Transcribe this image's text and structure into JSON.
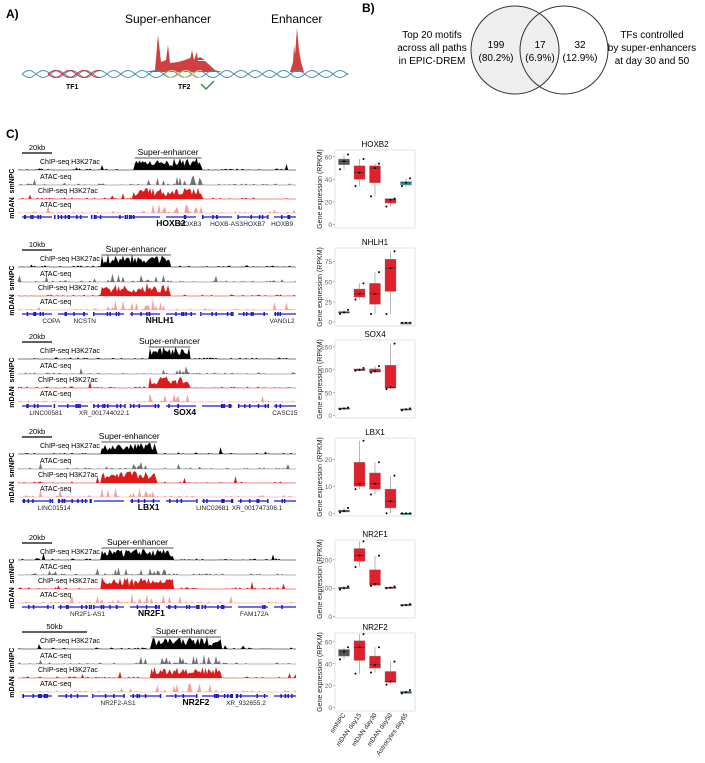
{
  "panels": {
    "a": "A)",
    "b": "B)",
    "c": "C)"
  },
  "panel_a": {
    "super_enhancer": "Super-enhancer",
    "enhancer": "Enhancer",
    "tf1": "TF1",
    "tf2": "TF2",
    "check_icon": "checkmark-icon",
    "colors": {
      "peak": "#d04040",
      "dna": "#4a90b0",
      "tf1": "#e03030",
      "tf2": "#f0d070",
      "check": "#3a8a4a"
    }
  },
  "panel_b": {
    "left_label": [
      "Top 20 motifs",
      "across all paths",
      "in EPIC-DREM"
    ],
    "right_label": [
      "TFs controlled",
      "by super-enhancers",
      "at day 30 and 50"
    ],
    "left_only": {
      "count": "199",
      "pct": "(80.2%)"
    },
    "overlap": {
      "count": "17",
      "pct": "(6.9%)"
    },
    "right_only": {
      "count": "32",
      "pct": "(12.9%)"
    },
    "colors": {
      "left_fill": "#efefef"
    }
  },
  "panel_c": {
    "super_enhancer": "Super-enhancer",
    "cell_labels": [
      "smNPC",
      "mDAN"
    ],
    "track_labels": [
      "ChIP-seq H3K27ac",
      "ATAC-seq",
      "ChIP-seq H3K27ac",
      "ATAC-seq"
    ],
    "track_colors": [
      "#000000",
      "#707070",
      "#e01818",
      "#f4a0a0"
    ],
    "gene_color": "#1a1ad0",
    "loci": [
      {
        "scale": "20kb",
        "focus": "HOXB2",
        "genes": [
          "HOXB3",
          "HOXB-AS3",
          "HOXB7",
          "HOXB9"
        ]
      },
      {
        "scale": "10kb",
        "focus": "NHLH1",
        "genes": [
          "COPA",
          "NCSTN",
          "VANGL2"
        ]
      },
      {
        "scale": "20kb",
        "focus": "SOX4",
        "genes": [
          "LINC00581",
          "XR_001744022.1",
          "CASC15"
        ]
      },
      {
        "scale": "20kb",
        "focus": "LBX1",
        "genes": [
          "LINC01514",
          "LINC02681",
          "XR_001747306.1"
        ]
      },
      {
        "scale": "20kb",
        "focus": "NR2F1",
        "genes": [
          "NR2F1-AS1",
          "FAM172A"
        ]
      },
      {
        "scale": "50kb",
        "focus": "NR2F2",
        "genes": [
          "NR2F2-AS1",
          "XR_932655.2"
        ]
      }
    ]
  },
  "chart_data": {
    "type": "box",
    "ylabel": "Gene expression (RPKM)",
    "categories": [
      "smNPC",
      "mDAN day15",
      "mDAN day30",
      "mDAN day50",
      "Astrocytes day65"
    ],
    "category_colors": [
      "#555555",
      "#e0202a",
      "#e0202a",
      "#e0202a",
      "#20a0a0"
    ],
    "panels": [
      {
        "title": "HOXB2",
        "yticks": [
          0,
          20,
          40,
          60
        ],
        "ylim": [
          -3,
          66
        ],
        "boxes": [
          [
            49,
            53,
            56,
            58,
            62
          ],
          [
            34,
            40,
            46,
            52,
            58
          ],
          [
            25,
            37,
            50,
            52,
            54
          ],
          [
            16,
            19,
            22,
            23,
            23
          ],
          [
            34,
            35,
            37,
            38,
            41
          ]
        ]
      },
      {
        "title": "NHLH1",
        "yticks": [
          0,
          25,
          50,
          75
        ],
        "ylim": [
          -5,
          92
        ],
        "boxes": [
          [
            10,
            11,
            12,
            13,
            15
          ],
          [
            28,
            31,
            35,
            41,
            48
          ],
          [
            10,
            22,
            35,
            48,
            62
          ],
          [
            10,
            38,
            67,
            78,
            88
          ],
          [
            -1,
            -1,
            -1,
            -1,
            -1
          ]
        ]
      },
      {
        "title": "SOX4",
        "yticks": [
          0,
          50,
          100,
          150
        ],
        "ylim": [
          -5,
          165
        ],
        "boxes": [
          [
            14,
            15,
            16,
            17,
            18
          ],
          [
            98,
            98,
            100,
            102,
            104
          ],
          [
            94,
            95,
            97,
            102,
            108
          ],
          [
            58,
            60,
            62,
            110,
            157
          ],
          [
            12,
            13,
            14,
            15,
            16
          ]
        ]
      },
      {
        "title": "LBX1",
        "yticks": [
          0,
          10,
          20
        ],
        "ylim": [
          -1,
          28
        ],
        "boxes": [
          [
            0.3,
            0.5,
            0.8,
            1.2,
            2
          ],
          [
            9,
            10,
            11,
            19,
            27
          ],
          [
            7,
            9,
            11,
            15,
            19
          ],
          [
            0,
            2,
            4.5,
            9,
            14
          ],
          [
            0,
            0,
            0,
            0,
            0
          ]
        ]
      },
      {
        "title": "NR2F1",
        "yticks": [
          0,
          100,
          200
        ],
        "ylim": [
          -5,
          270
        ],
        "boxes": [
          [
            95,
            98,
            100,
            104,
            106
          ],
          [
            175,
            195,
            215,
            240,
            265
          ],
          [
            108,
            110,
            115,
            165,
            215
          ],
          [
            100,
            101,
            102,
            104,
            106
          ],
          [
            39,
            40,
            41,
            43,
            44
          ]
        ]
      },
      {
        "title": "NR2F2",
        "yticks": [
          0,
          20,
          40,
          60
        ],
        "ylim": [
          -3,
          68
        ],
        "boxes": [
          [
            44,
            47,
            51,
            53,
            55
          ],
          [
            31,
            43,
            55,
            61,
            67
          ],
          [
            32,
            36,
            39,
            47,
            55
          ],
          [
            21,
            23,
            24,
            33,
            42
          ],
          [
            13,
            13,
            14,
            15,
            16
          ]
        ]
      }
    ]
  }
}
